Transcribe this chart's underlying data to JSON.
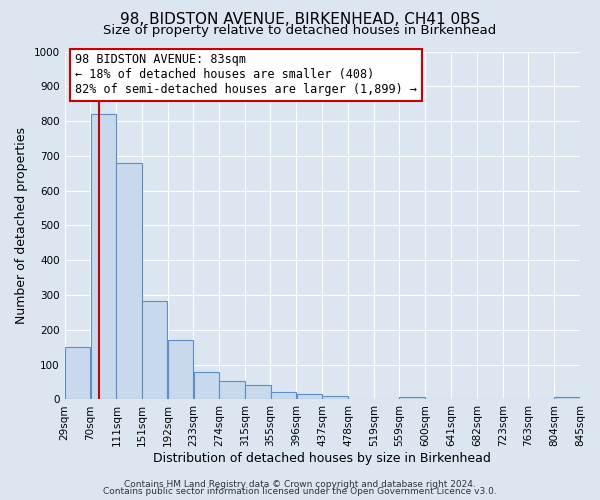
{
  "title": "98, BIDSTON AVENUE, BIRKENHEAD, CH41 0BS",
  "subtitle": "Size of property relative to detached houses in Birkenhead",
  "xlabel": "Distribution of detached houses by size in Birkenhead",
  "ylabel": "Number of detached properties",
  "bar_left_edges": [
    29,
    70,
    111,
    151,
    192,
    233,
    274,
    315,
    355,
    396,
    437,
    478,
    519,
    559,
    600,
    641,
    682,
    723,
    763,
    804
  ],
  "bar_heights": [
    150,
    820,
    680,
    283,
    172,
    78,
    53,
    42,
    20,
    17,
    10,
    0,
    0,
    8,
    0,
    0,
    0,
    0,
    0,
    7
  ],
  "bin_width": 41,
  "bar_color": "#c9d9ed",
  "bar_edge_color": "#5b8ec4",
  "tick_labels": [
    "29sqm",
    "70sqm",
    "111sqm",
    "151sqm",
    "192sqm",
    "233sqm",
    "274sqm",
    "315sqm",
    "355sqm",
    "396sqm",
    "437sqm",
    "478sqm",
    "519sqm",
    "559sqm",
    "600sqm",
    "641sqm",
    "682sqm",
    "723sqm",
    "763sqm",
    "804sqm",
    "845sqm"
  ],
  "ylim": [
    0,
    1000
  ],
  "yticks": [
    0,
    100,
    200,
    300,
    400,
    500,
    600,
    700,
    800,
    900,
    1000
  ],
  "property_line_x": 83,
  "property_line_color": "#cc0000",
  "annotation_line1": "98 BIDSTON AVENUE: 83sqm",
  "annotation_line2": "← 18% of detached houses are smaller (408)",
  "annotation_line3": "82% of semi-detached houses are larger (1,899) →",
  "annotation_box_color": "#ffffff",
  "annotation_box_edge_color": "#cc0000",
  "footer_line1": "Contains HM Land Registry data © Crown copyright and database right 2024.",
  "footer_line2": "Contains public sector information licensed under the Open Government Licence v3.0.",
  "background_color": "#dce6f0",
  "plot_bg_color": "#dce6f0",
  "grid_color": "#ffffff",
  "title_fontsize": 11,
  "subtitle_fontsize": 9.5,
  "axis_label_fontsize": 9,
  "tick_fontsize": 7.5,
  "annotation_fontsize": 8.5,
  "footer_fontsize": 6.5
}
